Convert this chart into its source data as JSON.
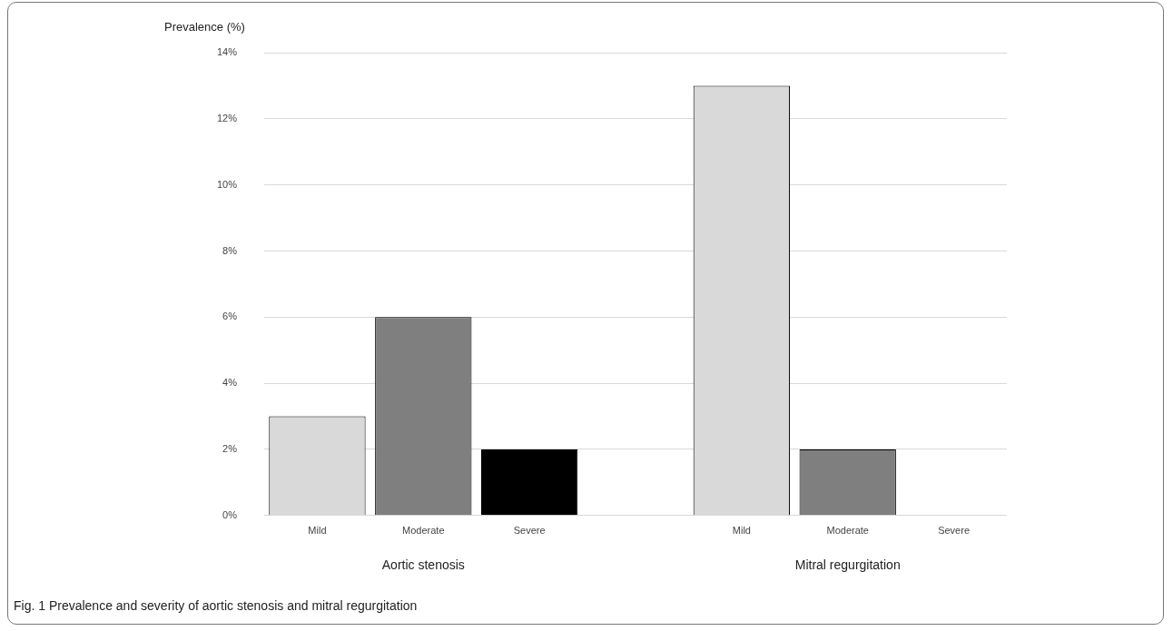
{
  "chart_data": {
    "type": "bar",
    "ylabel": "Prevalence (%)",
    "categories": [
      "Mild",
      "Moderate",
      "Severe",
      null,
      "Mild",
      "Moderate",
      "Severe"
    ],
    "values": [
      3,
      6,
      2,
      null,
      13,
      2,
      0
    ],
    "colors": [
      "#d9d9d9",
      "#7f7f7f",
      "#000000",
      "#ffffff",
      "#d9d9d9",
      "#7f7f7f",
      "#000000"
    ],
    "ylim": [
      0,
      14
    ],
    "yticks": [
      {
        "value": 0,
        "label": "0%"
      },
      {
        "value": 2,
        "label": "2%"
      },
      {
        "value": 4,
        "label": "4%"
      },
      {
        "value": 6,
        "label": "6%"
      },
      {
        "value": 8,
        "label": "8%"
      },
      {
        "value": 10,
        "label": "10%"
      },
      {
        "value": 12,
        "label": "12%"
      },
      {
        "value": 14,
        "label": "14%"
      }
    ],
    "grid": "y",
    "legend": false,
    "annotations": [
      "Aortic stenosis",
      "Mitral regurgitation",
      "Fig. 1 Prevalence and severity of aortic stenosis and mitral regurgitation"
    ]
  }
}
